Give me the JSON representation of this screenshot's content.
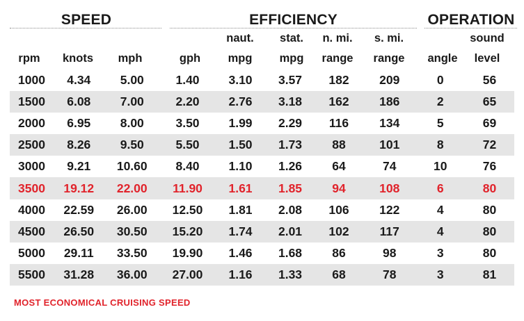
{
  "groups": {
    "speed": "SPEED",
    "efficiency": "EFFICIENCY",
    "operation": "OPERATION"
  },
  "columns": [
    {
      "top": "",
      "bottom": "rpm"
    },
    {
      "top": "",
      "bottom": "knots"
    },
    {
      "top": "",
      "bottom": "mph"
    },
    {
      "top": "",
      "bottom": "gph"
    },
    {
      "top": "naut.",
      "bottom": "mpg"
    },
    {
      "top": "stat.",
      "bottom": "mpg"
    },
    {
      "top": "n. mi.",
      "bottom": "range"
    },
    {
      "top": "s. mi.",
      "bottom": "range"
    },
    {
      "top": "",
      "bottom": "angle"
    },
    {
      "top": "sound",
      "bottom": "level"
    }
  ],
  "rows": [
    [
      "1000",
      "4.34",
      "5.00",
      "1.40",
      "3.10",
      "3.57",
      "182",
      "209",
      "0",
      "56"
    ],
    [
      "1500",
      "6.08",
      "7.00",
      "2.20",
      "2.76",
      "3.18",
      "162",
      "186",
      "2",
      "65"
    ],
    [
      "2000",
      "6.95",
      "8.00",
      "3.50",
      "1.99",
      "2.29",
      "116",
      "134",
      "5",
      "69"
    ],
    [
      "2500",
      "8.26",
      "9.50",
      "5.50",
      "1.50",
      "1.73",
      "88",
      "101",
      "8",
      "72"
    ],
    [
      "3000",
      "9.21",
      "10.60",
      "8.40",
      "1.10",
      "1.26",
      "64",
      "74",
      "10",
      "76"
    ],
    [
      "3500",
      "19.12",
      "22.00",
      "11.90",
      "1.61",
      "1.85",
      "94",
      "108",
      "6",
      "80"
    ],
    [
      "4000",
      "22.59",
      "26.00",
      "12.50",
      "1.81",
      "2.08",
      "106",
      "122",
      "4",
      "80"
    ],
    [
      "4500",
      "26.50",
      "30.50",
      "15.20",
      "1.74",
      "2.01",
      "102",
      "117",
      "4",
      "80"
    ],
    [
      "5000",
      "29.11",
      "33.50",
      "19.90",
      "1.46",
      "1.68",
      "86",
      "98",
      "3",
      "80"
    ],
    [
      "5500",
      "31.28",
      "36.00",
      "27.00",
      "1.16",
      "1.33",
      "68",
      "78",
      "3",
      "81"
    ]
  ],
  "highlight_row": 5,
  "highlight_color": "#e1232b",
  "shade_color": "#e5e5e5",
  "footnote": "MOST ECONOMICAL CRUISING SPEED"
}
